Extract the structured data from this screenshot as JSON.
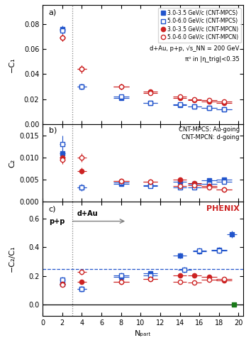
{
  "chart_data": [
    {
      "type": "scatter",
      "title": "a)",
      "ylabel": "−C₁",
      "xlim": [
        0,
        20.5
      ],
      "xticks": [
        0,
        2,
        4,
        6,
        8,
        10,
        12,
        14,
        16,
        18,
        20
      ],
      "ylim": [
        0,
        0.095
      ],
      "yticks": [
        {
          "value": 0,
          "label": "0.00"
        },
        {
          "value": 0.02,
          "label": "0.02"
        },
        {
          "value": 0.04,
          "label": "0.04"
        },
        {
          "value": 0.06,
          "label": "0.06"
        },
        {
          "value": 0.08,
          "label": "0.08"
        }
      ],
      "tick_labels": "y",
      "legend": "upper right",
      "reference_lines": [
        {
          "axis": "x",
          "value": 3.0,
          "line_style": "dotted",
          "color": "gray"
        }
      ],
      "annotations": [
        {
          "text": "d+Au, p+p, √s_NN = 200 GeV"
        },
        {
          "text": "π⁰ in |η_trig|<0.35"
        }
      ],
      "series": [
        {
          "name": "3.0-3.5 GeV/c (CNT-MPCS)",
          "color": "#2255cc",
          "marker": "filled_square",
          "x": [
            2.0,
            4.0,
            8.0,
            11.0,
            14.0,
            15.5,
            17.0,
            18.5
          ],
          "values": [
            0.076,
            0.03,
            0.021,
            0.017,
            0.015,
            0.014,
            0.013,
            0.012
          ],
          "xerr": [
            0.3,
            0.5,
            0.8,
            0.7,
            0.7,
            0.7,
            0.8,
            0.8
          ],
          "yerr": [
            0.003,
            0.002,
            0.001,
            0.001,
            0.001,
            0.001,
            0.001,
            0.001
          ]
        },
        {
          "name": "5.0-6.0 GeV/c (CNT-MPCS)",
          "color": "#2255cc",
          "marker": "open_square",
          "x": [
            2.0,
            4.0,
            8.0,
            11.0,
            14.0,
            15.5,
            17.0,
            18.5
          ],
          "values": [
            0.075,
            0.03,
            0.022,
            0.017,
            0.016,
            0.014,
            0.013,
            0.012
          ],
          "xerr": [
            0.3,
            0.5,
            0.8,
            0.7,
            0.7,
            0.7,
            0.8,
            0.8
          ],
          "yerr": [
            0.003,
            0.002,
            0.001,
            0.001,
            0.001,
            0.001,
            0.001,
            0.001
          ]
        },
        {
          "name": "3.0-3.5 GeV/c (CNT-MPCN)",
          "color": "#cc2222",
          "marker": "filled_circle",
          "x": [
            2.0,
            4.0,
            8.0,
            11.0,
            14.0,
            15.5,
            17.0,
            18.5
          ],
          "values": [
            0.069,
            0.044,
            0.03,
            0.026,
            0.021,
            0.019,
            0.018,
            0.017
          ],
          "xerr": [
            0.3,
            0.5,
            0.8,
            0.7,
            0.7,
            0.7,
            0.8,
            0.8
          ],
          "yerr": [
            0.003,
            0.003,
            0.002,
            0.002,
            0.001,
            0.001,
            0.001,
            0.001
          ]
        },
        {
          "name": "5.0-6.0 GeV/c (CNT-MPCN)",
          "color": "#cc2222",
          "marker": "open_circle",
          "x": [
            2.0,
            4.0,
            8.0,
            11.0,
            14.0,
            15.5,
            17.0,
            18.5
          ],
          "values": [
            0.069,
            0.044,
            0.03,
            0.025,
            0.022,
            0.02,
            0.019,
            0.018
          ],
          "xerr": [
            0.3,
            0.5,
            0.8,
            0.7,
            0.7,
            0.7,
            0.8,
            0.8
          ],
          "yerr": [
            0.003,
            0.003,
            0.002,
            0.002,
            0.001,
            0.001,
            0.001,
            0.001
          ]
        }
      ]
    },
    {
      "type": "scatter",
      "title": "b)",
      "ylabel": "C₂",
      "xlim": [
        0,
        20.5
      ],
      "xticks": [
        0,
        2,
        4,
        6,
        8,
        10,
        12,
        14,
        16,
        18,
        20
      ],
      "ylim": [
        0,
        0.0175
      ],
      "yticks": [
        {
          "value": 0,
          "label": "0.000"
        },
        {
          "value": 0.005,
          "label": "0.005"
        },
        {
          "value": 0.01,
          "label": "0.010"
        },
        {
          "value": 0.015,
          "label": "0.015"
        }
      ],
      "tick_labels": "y",
      "reference_lines": [
        {
          "axis": "x",
          "value": 3.0,
          "line_style": "dotted",
          "color": "gray"
        }
      ],
      "annotations": [
        {
          "text": "CNT-MPCS: Au-going\nCNT-MPCN: d-going"
        }
      ],
      "series": [
        {
          "name": "3.0-3.5 GeV/c (CNT-MPCS)",
          "color": "#2255cc",
          "marker": "filled_square",
          "x": [
            2.0,
            4.0,
            8.0,
            11.0,
            14.0,
            15.5,
            17.0,
            18.5
          ],
          "values": [
            0.011,
            0.0033,
            0.0041,
            0.0038,
            0.0045,
            0.004,
            0.0048,
            0.005
          ],
          "xerr": [
            0.3,
            0.5,
            0.8,
            0.7,
            0.7,
            0.7,
            0.8,
            0.8
          ],
          "yerr": [
            0.001,
            0.0005,
            0.0004,
            0.0003,
            0.0003,
            0.0003,
            0.0003,
            0.0003
          ]
        },
        {
          "name": "5.0-6.0 GeV/c (CNT-MPCS)",
          "color": "#2255cc",
          "marker": "open_square",
          "x": [
            2.0,
            4.0,
            8.0,
            11.0,
            14.0,
            15.5,
            17.0,
            18.5
          ],
          "values": [
            0.013,
            0.0033,
            0.0043,
            0.0035,
            0.0032,
            0.0033,
            0.004,
            0.0045
          ],
          "xerr": [
            0.3,
            0.5,
            0.8,
            0.7,
            0.7,
            0.7,
            0.8,
            0.8
          ],
          "yerr": [
            0.002,
            0.0008,
            0.0004,
            0.0003,
            0.0003,
            0.0003,
            0.0003,
            0.0003
          ]
        },
        {
          "name": "3.0-3.5 GeV/c (CNT-MPCN)",
          "color": "#cc2222",
          "marker": "filled_circle",
          "x": [
            2.0,
            4.0,
            8.0,
            11.0,
            14.0,
            15.5,
            17.0,
            18.5
          ],
          "values": [
            0.01,
            0.007,
            0.0047,
            0.0046,
            0.005,
            0.0042,
            0.0036,
            0.0028
          ],
          "xerr": [
            0.3,
            0.5,
            0.8,
            0.7,
            0.7,
            0.7,
            0.8,
            0.8
          ],
          "yerr": [
            0.001,
            0.0007,
            0.0004,
            0.0004,
            0.0003,
            0.0003,
            0.0003,
            0.0003
          ]
        },
        {
          "name": "5.0-6.0 GeV/c (CNT-MPCN)",
          "color": "#cc2222",
          "marker": "open_circle",
          "x": [
            2.0,
            4.0,
            8.0,
            11.0,
            14.0,
            15.5,
            17.0,
            18.5
          ],
          "values": [
            0.0095,
            0.01,
            0.0047,
            0.0046,
            0.0035,
            0.0038,
            0.0033,
            0.0028
          ],
          "xerr": [
            0.3,
            0.5,
            0.8,
            0.7,
            0.7,
            0.7,
            0.8,
            0.8
          ],
          "yerr": [
            0.001,
            0.001,
            0.0005,
            0.0004,
            0.0003,
            0.0003,
            0.0003,
            0.0003
          ]
        }
      ]
    },
    {
      "type": "scatter",
      "title": "c)",
      "ylabel": "−C₂/C₁",
      "xlabel": "Nₚₐᵣₜ",
      "xlim": [
        0,
        20.5
      ],
      "xticks": [
        0,
        2,
        4,
        6,
        8,
        10,
        12,
        14,
        16,
        18,
        20
      ],
      "ylim": [
        -0.08,
        0.72
      ],
      "yticks": [
        {
          "value": 0,
          "label": "0.0"
        },
        {
          "value": 0.2,
          "label": "0.2"
        },
        {
          "value": 0.4,
          "label": "0.4"
        },
        {
          "value": 0.6,
          "label": "0.6"
        }
      ],
      "reference_lines": [
        {
          "axis": "x",
          "value": 3.0,
          "line_style": "dotted",
          "color": "gray"
        },
        {
          "axis": "y",
          "value": 0.25,
          "line_style": "dashed",
          "color": "#2255cc"
        },
        {
          "axis": "y",
          "value": 0,
          "line_style": "solid",
          "color": "black"
        }
      ],
      "annotations": [
        {
          "text": "p+p"
        },
        {
          "text": "d+Au",
          "arrow": true
        },
        {
          "text": "PHENIX",
          "color": "#cc2222"
        }
      ],
      "series": [
        {
          "name": "3.0-3.5 GeV/c (CNT-MPCS)",
          "color": "#2255cc",
          "marker": "filled_square",
          "x": [
            2.0,
            4.0,
            8.0,
            11.0,
            14.0,
            16.0,
            18.0,
            19.3
          ],
          "values": [
            0.145,
            0.11,
            0.195,
            0.22,
            0.34,
            0.37,
            0.38,
            0.49
          ],
          "xerr": [
            0.3,
            0.5,
            0.8,
            0.7,
            0.7,
            0.7,
            0.8,
            0.5
          ],
          "yerr": [
            0.015,
            0.015,
            0.015,
            0.015,
            0.02,
            0.02,
            0.02,
            0.025
          ]
        },
        {
          "name": "5.0-6.0 GeV/c (CNT-MPCS)",
          "color": "#2255cc",
          "marker": "open_square",
          "x": [
            2.0,
            4.0,
            8.0,
            11.0,
            14.5,
            16.0,
            18.0
          ],
          "values": [
            0.175,
            0.11,
            0.205,
            0.205,
            0.245,
            0.375,
            0.375
          ],
          "xerr": [
            0.3,
            0.5,
            0.8,
            0.7,
            0.7,
            0.7,
            0.8
          ],
          "yerr": [
            0.02,
            0.02,
            0.018,
            0.015,
            0.02,
            0.02,
            0.02
          ]
        },
        {
          "name": "3.0-3.5 GeV/c (CNT-MPCN)",
          "color": "#cc2222",
          "marker": "filled_circle",
          "x": [
            2.0,
            4.0,
            8.0,
            11.0,
            14.0,
            15.5,
            17.0,
            18.5
          ],
          "values": [
            0.145,
            0.16,
            0.16,
            0.18,
            0.205,
            0.205,
            0.195,
            0.17
          ],
          "xerr": [
            0.3,
            0.5,
            0.8,
            0.7,
            0.7,
            0.7,
            0.8,
            0.8
          ],
          "yerr": [
            0.015,
            0.015,
            0.013,
            0.013,
            0.013,
            0.013,
            0.013,
            0.013
          ]
        },
        {
          "name": "5.0-6.0 GeV/c (CNT-MPCN)",
          "color": "#cc2222",
          "marker": "open_circle",
          "x": [
            2.0,
            4.0,
            8.0,
            11.0,
            14.0,
            15.5,
            17.0,
            18.5
          ],
          "values": [
            0.138,
            0.228,
            0.157,
            0.18,
            0.16,
            0.155,
            0.172,
            0.178
          ],
          "xerr": [
            0.3,
            0.5,
            0.8,
            0.7,
            0.7,
            0.7,
            0.8,
            0.8
          ],
          "yerr": [
            0.015,
            0.02,
            0.013,
            0.013,
            0.013,
            0.013,
            0.013,
            0.013
          ]
        },
        {
          "color": "#1a7a1a",
          "marker": "filled_square",
          "x": [
            19.5
          ],
          "values": [
            0.0
          ]
        }
      ]
    }
  ]
}
